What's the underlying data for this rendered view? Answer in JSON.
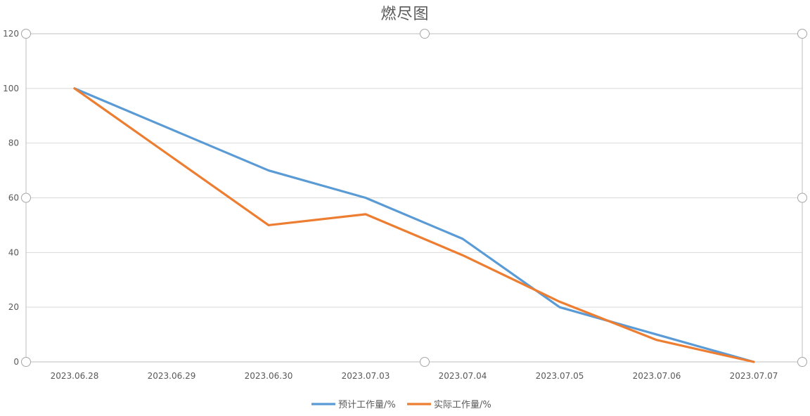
{
  "chart_data": {
    "type": "line",
    "title": "燃尽图",
    "categories": [
      "2023.06.28",
      "2023.06.29",
      "2023.06.30",
      "2023.07.03",
      "2023.07.04",
      "2023.07.05",
      "2023.07.06",
      "2023.07.07"
    ],
    "series": [
      {
        "name": "预计工作量/%",
        "values": [
          100,
          85,
          70,
          60,
          45,
          20,
          10,
          0
        ],
        "color": "#5b9bd5"
      },
      {
        "name": "实际工作量/%",
        "values": [
          100,
          75,
          50,
          54,
          39,
          22,
          8,
          0
        ],
        "color": "#ed7d31"
      }
    ],
    "ylim": [
      0,
      120
    ],
    "yticks": [
      0,
      20,
      40,
      60,
      80,
      100,
      120
    ],
    "grid": true,
    "legend": "bottom",
    "colors": {
      "grid": "#d9d9d9",
      "frame": "#bfbfbf",
      "handle": "#a6a6a6"
    }
  }
}
